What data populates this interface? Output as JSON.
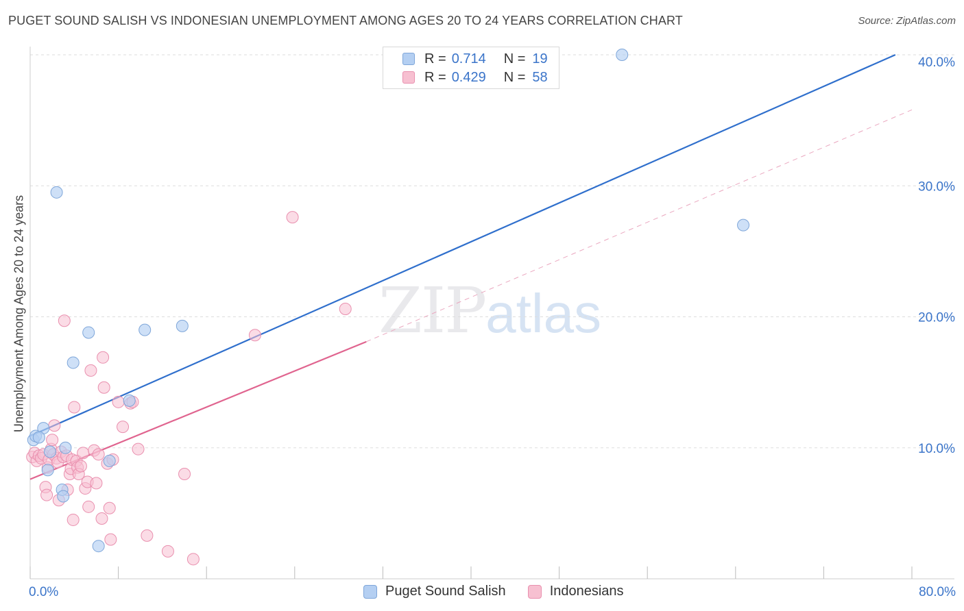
{
  "header": {
    "title": "PUGET SOUND SALISH VS INDONESIAN UNEMPLOYMENT AMONG AGES 20 TO 24 YEARS CORRELATION CHART",
    "source": "Source: ZipAtlas.com"
  },
  "watermark": {
    "zip": "ZIP",
    "atlas": "atlas"
  },
  "legend": {
    "rows": [
      {
        "r_label": "R =",
        "r_value": "0.714",
        "n_label": "N =",
        "n_value": "19"
      },
      {
        "r_label": "R =",
        "r_value": "0.429",
        "n_label": "N =",
        "n_value": "58"
      }
    ]
  },
  "bottom_legend": {
    "series1": "Puget Sound Salish",
    "series2": "Indonesians"
  },
  "colors": {
    "blue_fill": "#b4cff2",
    "blue_stroke": "#7ea6d9",
    "blue_line": "#2f6fcc",
    "pink_fill": "#f7c0d1",
    "pink_stroke": "#e98fae",
    "pink_line": "#e0648f",
    "axis_text": "#3a74c9",
    "grid": "#dddddd"
  },
  "chart_data": {
    "type": "scatter",
    "title": "PUGET SOUND SALISH VS INDONESIAN UNEMPLOYMENT AMONG AGES 20 TO 24 YEARS CORRELATION CHART",
    "xlabel": "",
    "ylabel": "Unemployment Among Ages 20 to 24 years",
    "xlim": [
      0,
      80
    ],
    "ylim": [
      0,
      40
    ],
    "x_tick_labels": [
      "0.0%",
      "80.0%"
    ],
    "y_ticks": [
      10,
      20,
      30,
      40
    ],
    "y_tick_labels": [
      "10.0%",
      "20.0%",
      "30.0%",
      "40.0%"
    ],
    "series": [
      {
        "name": "Puget Sound Salish",
        "color": "#b4cff2",
        "points": [
          [
            0.3,
            10.6
          ],
          [
            0.5,
            10.9
          ],
          [
            1.2,
            11.5
          ],
          [
            1.6,
            8.3
          ],
          [
            1.8,
            9.7
          ],
          [
            2.4,
            29.5
          ],
          [
            2.9,
            6.8
          ],
          [
            3.0,
            6.3
          ],
          [
            3.2,
            10.0
          ],
          [
            3.9,
            16.5
          ],
          [
            5.3,
            18.8
          ],
          [
            6.2,
            2.5
          ],
          [
            7.2,
            9.0
          ],
          [
            9.0,
            13.6
          ],
          [
            10.4,
            19.0
          ],
          [
            13.8,
            19.3
          ],
          [
            53.7,
            40.0
          ],
          [
            64.7,
            27.0
          ],
          [
            0.8,
            10.8
          ]
        ],
        "trend": {
          "x": [
            0,
            78.5
          ],
          "y": [
            10.9,
            40.0
          ]
        }
      },
      {
        "name": "Indonesians",
        "color": "#f7c0d1",
        "points": [
          [
            0.2,
            9.3
          ],
          [
            0.4,
            9.6
          ],
          [
            0.6,
            9.0
          ],
          [
            0.8,
            9.4
          ],
          [
            1.0,
            9.2
          ],
          [
            1.2,
            9.5
          ],
          [
            1.4,
            7.0
          ],
          [
            1.5,
            6.4
          ],
          [
            1.6,
            8.5
          ],
          [
            1.7,
            9.1
          ],
          [
            1.9,
            9.9
          ],
          [
            2.0,
            10.6
          ],
          [
            2.1,
            9.5
          ],
          [
            2.2,
            11.7
          ],
          [
            2.4,
            9.2
          ],
          [
            2.5,
            8.9
          ],
          [
            2.6,
            6.0
          ],
          [
            2.8,
            9.7
          ],
          [
            3.0,
            9.3
          ],
          [
            3.1,
            19.7
          ],
          [
            3.3,
            9.4
          ],
          [
            3.4,
            6.8
          ],
          [
            3.6,
            8.0
          ],
          [
            3.7,
            8.4
          ],
          [
            3.8,
            9.1
          ],
          [
            3.9,
            4.5
          ],
          [
            4.0,
            13.1
          ],
          [
            4.2,
            9.0
          ],
          [
            4.3,
            8.5
          ],
          [
            4.4,
            8.0
          ],
          [
            4.6,
            8.6
          ],
          [
            4.8,
            9.6
          ],
          [
            5.0,
            6.9
          ],
          [
            5.2,
            7.4
          ],
          [
            5.3,
            5.5
          ],
          [
            5.5,
            15.9
          ],
          [
            5.8,
            9.8
          ],
          [
            6.0,
            7.3
          ],
          [
            6.2,
            9.5
          ],
          [
            6.5,
            4.6
          ],
          [
            6.6,
            16.9
          ],
          [
            6.7,
            14.6
          ],
          [
            7.0,
            8.8
          ],
          [
            7.2,
            5.4
          ],
          [
            7.3,
            3.0
          ],
          [
            7.5,
            9.1
          ],
          [
            8.0,
            13.5
          ],
          [
            8.4,
            11.6
          ],
          [
            9.1,
            13.4
          ],
          [
            9.3,
            13.5
          ],
          [
            9.8,
            9.9
          ],
          [
            10.6,
            3.3
          ],
          [
            12.5,
            2.1
          ],
          [
            14.0,
            8.0
          ],
          [
            14.8,
            1.5
          ],
          [
            20.4,
            18.6
          ],
          [
            23.8,
            27.6
          ],
          [
            28.6,
            20.6
          ]
        ],
        "trend": {
          "x": [
            0,
            30.5
          ],
          "y": [
            7.6,
            18.1
          ]
        },
        "trend_extension": {
          "x": [
            30.5,
            80
          ],
          "y": [
            18.1,
            35.8
          ]
        }
      }
    ]
  }
}
